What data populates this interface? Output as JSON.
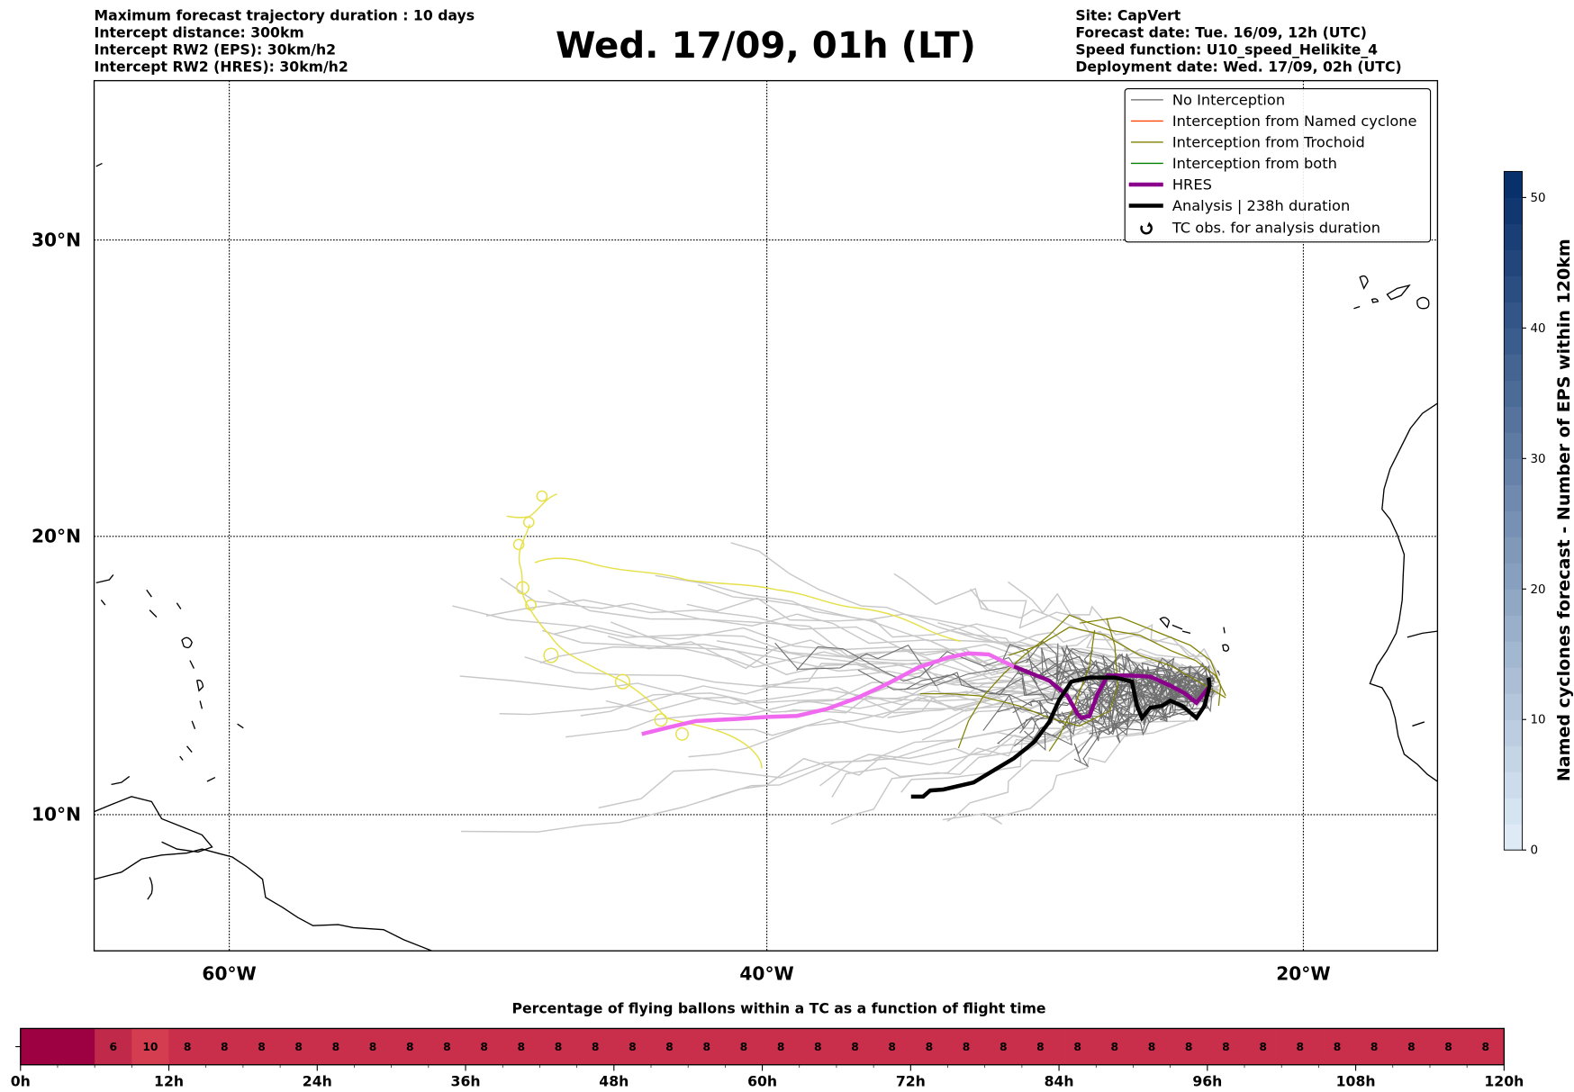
{
  "header": {
    "left": [
      "Maximum forecast trajectory duration : 10 days",
      "Intercept distance: 300km",
      "Intercept RW2 (EPS):  30km/h2",
      "Intercept RW2 (HRES): 30km/h2"
    ],
    "title": "Wed. 17/09, 01h (LT)",
    "right": [
      "Site: CapVert",
      "Forecast date: Tue. 16/09, 12h (UTC)",
      "Speed function: U10_speed_Helikite_4",
      "Deployment date: Wed. 17/09, 02h (UTC)"
    ]
  },
  "map": {
    "lat_labels": [
      "30°N",
      "20°N",
      "10°N"
    ],
    "lon_labels": [
      "60°W",
      "40°W",
      "20°W"
    ]
  },
  "legend": {
    "items": [
      {
        "label": "No Interception",
        "color": "#666666"
      },
      {
        "label": "Interception from Named cyclone",
        "color": "#ff4500"
      },
      {
        "label": "Interception from Trochoid",
        "color": "#808000"
      },
      {
        "label": "Interception from both",
        "color": "#008000"
      },
      {
        "label": "HRES",
        "color": "#8b008b"
      },
      {
        "label": "Analysis | 238h duration",
        "color": "#000000"
      },
      {
        "label": "TC obs. for analysis duration",
        "icon": "cyclone-icon"
      }
    ]
  },
  "colorbar": {
    "label": "Named cyclones forecast - Number of EPS within 120km",
    "ticks": [
      "0",
      "10",
      "20",
      "30",
      "40",
      "50"
    ],
    "range": [
      0,
      52
    ],
    "colors": [
      "#deebf7",
      "#08306b"
    ]
  },
  "time_bar": {
    "title": "Percentage of flying ballons within a TC as a function of flight time",
    "tick_labels": [
      "0h",
      "12h",
      "24h",
      "36h",
      "48h",
      "60h",
      "72h",
      "84h",
      "96h",
      "108h",
      "120h"
    ],
    "cell_hours": 3,
    "values": [
      "",
      "",
      "6",
      "10",
      "8",
      "8",
      "8",
      "8",
      "8",
      "8",
      "8",
      "8",
      "8",
      "8",
      "8",
      "8",
      "8",
      "8",
      "8",
      "8",
      "8",
      "8",
      "8",
      "8",
      "8",
      "8",
      "8",
      "8",
      "8",
      "8",
      "8",
      "8",
      "8",
      "8",
      "8",
      "8",
      "8",
      "8",
      "8",
      "8"
    ],
    "colors": {
      "zero": "#9e0142",
      "six": "#c0294a",
      "ten": "#d43d4f",
      "eight": "#c92f4b"
    }
  }
}
